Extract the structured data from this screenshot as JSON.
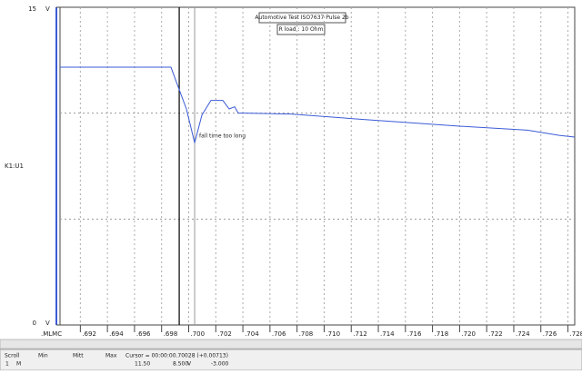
{
  "chart_data": {
    "type": "line",
    "title": "Automotive Test ISO7637 Pulse 2b",
    "subtitle": "R load : 10 Ohm",
    "annotation": "fall time too long",
    "y_axis_label": "V",
    "y_channel_label": "K1:U1",
    "x_axis_label": ".MLMC",
    "xlim": [
      0.6905,
      0.7285
    ],
    "xticks": [
      {
        "value": 0.692,
        "label": ".692"
      },
      {
        "value": 0.694,
        "label": ".694"
      },
      {
        "value": 0.696,
        "label": ".696"
      },
      {
        "value": 0.698,
        "label": ".698"
      },
      {
        "value": 0.7,
        "label": ".700"
      },
      {
        "value": 0.702,
        "label": ".702"
      },
      {
        "value": 0.704,
        "label": ".704"
      },
      {
        "value": 0.706,
        "label": ".706"
      },
      {
        "value": 0.708,
        "label": ".708"
      },
      {
        "value": 0.71,
        "label": ".710"
      },
      {
        "value": 0.712,
        "label": ".712"
      },
      {
        "value": 0.714,
        "label": ".714"
      },
      {
        "value": 0.716,
        "label": ".716"
      },
      {
        "value": 0.718,
        "label": ".718"
      },
      {
        "value": 0.72,
        "label": ".720"
      },
      {
        "value": 0.722,
        "label": ".722"
      },
      {
        "value": 0.724,
        "label": ".724"
      },
      {
        "value": 0.726,
        "label": ".726"
      },
      {
        "value": 0.728,
        "label": ".728"
      }
    ],
    "ylim": [
      0,
      15
    ],
    "yticks": [
      0,
      15
    ],
    "grid_y": [
      5,
      10
    ],
    "cursors": [
      0.6993,
      0.70044
    ],
    "x": [
      0.6905,
      0.69869,
      0.69923,
      0.69983,
      0.70044,
      0.70097,
      0.70164,
      0.70252,
      0.70299,
      0.70339,
      0.70366,
      0.7042,
      0.70755,
      0.71292,
      0.71964,
      0.72501,
      0.72736,
      0.7285
    ],
    "series": [
      {
        "name": "K1:U1",
        "color": "#3b5bd6",
        "values": [
          12.17,
          12.17,
          11.23,
          10.2,
          8.6,
          9.9,
          10.6,
          10.6,
          10.2,
          10.3,
          10.0,
          10.0,
          9.96,
          9.7,
          9.4,
          9.2,
          8.95,
          8.87
        ]
      }
    ],
    "status": {
      "headers": [
        "Scroll",
        "Min",
        "Mitt",
        "Max"
      ],
      "row_label": "1",
      "row_mode": "M",
      "cursor": "Cursor = 00:00:00.70028 (+0.00713)",
      "val1": "11.50",
      "val2": "8.500",
      "unit": "V",
      "val3": "-3.000"
    }
  }
}
